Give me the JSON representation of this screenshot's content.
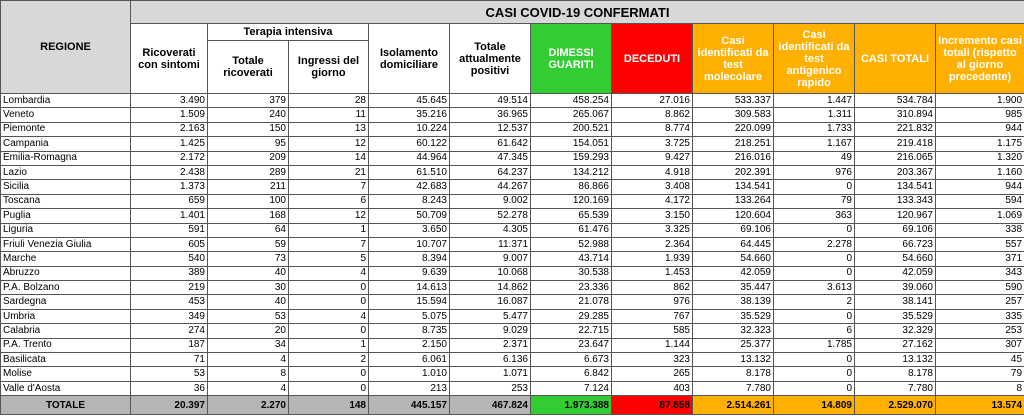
{
  "title": "CASI COVID-19 CONFERMATI",
  "headers": {
    "regione": "REGIONE",
    "ricoverati": "Ricoverati con sintomi",
    "terapia_intensiva": "Terapia intensiva",
    "ti_totale": "Totale ricoverati",
    "ti_ingressi": "Ingressi del giorno",
    "isolamento": "Isolamento domiciliare",
    "positivi": "Totale attualmente positivi",
    "dimessi": "DIMESSI GUARITI",
    "deceduti": "DECEDUTI",
    "test_molecolare": "Casi identificati da test molecolare",
    "test_antigenico": "Casi identificati da test antigenico rapido",
    "casi_totali": "CASI TOTALI",
    "incremento": "Incremento casi totali (rispetto al giorno precedente)"
  },
  "rows": [
    {
      "regione": "Lombardia",
      "ricoverati": "3.490",
      "ti_totale": "379",
      "ti_ingressi": "28",
      "isolamento": "45.645",
      "positivi": "49.514",
      "dimessi": "458.254",
      "deceduti": "27.016",
      "molecolare": "533.337",
      "antigenico": "1.447",
      "totali": "534.784",
      "incremento": "1.900"
    },
    {
      "regione": "Veneto",
      "ricoverati": "1.509",
      "ti_totale": "240",
      "ti_ingressi": "11",
      "isolamento": "35.216",
      "positivi": "36.965",
      "dimessi": "265.067",
      "deceduti": "8.862",
      "molecolare": "309.583",
      "antigenico": "1.311",
      "totali": "310.894",
      "incremento": "985"
    },
    {
      "regione": "Piemonte",
      "ricoverati": "2.163",
      "ti_totale": "150",
      "ti_ingressi": "13",
      "isolamento": "10.224",
      "positivi": "12.537",
      "dimessi": "200.521",
      "deceduti": "8.774",
      "molecolare": "220.099",
      "antigenico": "1.733",
      "totali": "221.832",
      "incremento": "944"
    },
    {
      "regione": "Campania",
      "ricoverati": "1.425",
      "ti_totale": "95",
      "ti_ingressi": "12",
      "isolamento": "60.122",
      "positivi": "61.642",
      "dimessi": "154.051",
      "deceduti": "3.725",
      "molecolare": "218.251",
      "antigenico": "1.167",
      "totali": "219.418",
      "incremento": "1.175"
    },
    {
      "regione": "Emilia-Romagna",
      "ricoverati": "2.172",
      "ti_totale": "209",
      "ti_ingressi": "14",
      "isolamento": "44.964",
      "positivi": "47.345",
      "dimessi": "159.293",
      "deceduti": "9.427",
      "molecolare": "216.016",
      "antigenico": "49",
      "totali": "216.065",
      "incremento": "1.320"
    },
    {
      "regione": "Lazio",
      "ricoverati": "2.438",
      "ti_totale": "289",
      "ti_ingressi": "21",
      "isolamento": "61.510",
      "positivi": "64.237",
      "dimessi": "134.212",
      "deceduti": "4.918",
      "molecolare": "202.391",
      "antigenico": "976",
      "totali": "203.367",
      "incremento": "1.160"
    },
    {
      "regione": "Sicilia",
      "ricoverati": "1.373",
      "ti_totale": "211",
      "ti_ingressi": "7",
      "isolamento": "42.683",
      "positivi": "44.267",
      "dimessi": "86.866",
      "deceduti": "3.408",
      "molecolare": "134.541",
      "antigenico": "0",
      "totali": "134.541",
      "incremento": "944"
    },
    {
      "regione": "Toscana",
      "ricoverati": "659",
      "ti_totale": "100",
      "ti_ingressi": "6",
      "isolamento": "8.243",
      "positivi": "9.002",
      "dimessi": "120.169",
      "deceduti": "4.172",
      "molecolare": "133.264",
      "antigenico": "79",
      "totali": "133.343",
      "incremento": "594"
    },
    {
      "regione": "Puglia",
      "ricoverati": "1.401",
      "ti_totale": "168",
      "ti_ingressi": "12",
      "isolamento": "50.709",
      "positivi": "52.278",
      "dimessi": "65.539",
      "deceduti": "3.150",
      "molecolare": "120.604",
      "antigenico": "363",
      "totali": "120.967",
      "incremento": "1.069"
    },
    {
      "regione": "Liguria",
      "ricoverati": "591",
      "ti_totale": "64",
      "ti_ingressi": "1",
      "isolamento": "3.650",
      "positivi": "4.305",
      "dimessi": "61.476",
      "deceduti": "3.325",
      "molecolare": "69.106",
      "antigenico": "0",
      "totali": "69.106",
      "incremento": "338"
    },
    {
      "regione": "Friuli Venezia Giulia",
      "ricoverati": "605",
      "ti_totale": "59",
      "ti_ingressi": "7",
      "isolamento": "10.707",
      "positivi": "11.371",
      "dimessi": "52.988",
      "deceduti": "2.364",
      "molecolare": "64.445",
      "antigenico": "2.278",
      "totali": "66.723",
      "incremento": "557"
    },
    {
      "regione": "Marche",
      "ricoverati": "540",
      "ti_totale": "73",
      "ti_ingressi": "5",
      "isolamento": "8.394",
      "positivi": "9.007",
      "dimessi": "43.714",
      "deceduti": "1.939",
      "molecolare": "54.660",
      "antigenico": "0",
      "totali": "54.660",
      "incremento": "371"
    },
    {
      "regione": "Abruzzo",
      "ricoverati": "389",
      "ti_totale": "40",
      "ti_ingressi": "4",
      "isolamento": "9.639",
      "positivi": "10.068",
      "dimessi": "30.538",
      "deceduti": "1.453",
      "molecolare": "42.059",
      "antigenico": "0",
      "totali": "42.059",
      "incremento": "343"
    },
    {
      "regione": "P.A. Bolzano",
      "ricoverati": "219",
      "ti_totale": "30",
      "ti_ingressi": "0",
      "isolamento": "14.613",
      "positivi": "14.862",
      "dimessi": "23.336",
      "deceduti": "862",
      "molecolare": "35.447",
      "antigenico": "3.613",
      "totali": "39.060",
      "incremento": "590"
    },
    {
      "regione": "Sardegna",
      "ricoverati": "453",
      "ti_totale": "40",
      "ti_ingressi": "0",
      "isolamento": "15.594",
      "positivi": "16.087",
      "dimessi": "21.078",
      "deceduti": "976",
      "molecolare": "38.139",
      "antigenico": "2",
      "totali": "38.141",
      "incremento": "257"
    },
    {
      "regione": "Umbria",
      "ricoverati": "349",
      "ti_totale": "53",
      "ti_ingressi": "4",
      "isolamento": "5.075",
      "positivi": "5.477",
      "dimessi": "29.285",
      "deceduti": "767",
      "molecolare": "35.529",
      "antigenico": "0",
      "totali": "35.529",
      "incremento": "335"
    },
    {
      "regione": "Calabria",
      "ricoverati": "274",
      "ti_totale": "20",
      "ti_ingressi": "0",
      "isolamento": "8.735",
      "positivi": "9.029",
      "dimessi": "22.715",
      "deceduti": "585",
      "molecolare": "32.323",
      "antigenico": "6",
      "totali": "32.329",
      "incremento": "253"
    },
    {
      "regione": "P.A. Trento",
      "ricoverati": "187",
      "ti_totale": "34",
      "ti_ingressi": "1",
      "isolamento": "2.150",
      "positivi": "2.371",
      "dimessi": "23.647",
      "deceduti": "1.144",
      "molecolare": "25.377",
      "antigenico": "1.785",
      "totali": "27.162",
      "incremento": "307"
    },
    {
      "regione": "Basilicata",
      "ricoverati": "71",
      "ti_totale": "4",
      "ti_ingressi": "2",
      "isolamento": "6.061",
      "positivi": "6.136",
      "dimessi": "6.673",
      "deceduti": "323",
      "molecolare": "13.132",
      "antigenico": "0",
      "totali": "13.132",
      "incremento": "45"
    },
    {
      "regione": "Molise",
      "ricoverati": "53",
      "ti_totale": "8",
      "ti_ingressi": "0",
      "isolamento": "1.010",
      "positivi": "1.071",
      "dimessi": "6.842",
      "deceduti": "265",
      "molecolare": "8.178",
      "antigenico": "0",
      "totali": "8.178",
      "incremento": "79"
    },
    {
      "regione": "Valle d'Aosta",
      "ricoverati": "36",
      "ti_totale": "4",
      "ti_ingressi": "0",
      "isolamento": "213",
      "positivi": "253",
      "dimessi": "7.124",
      "deceduti": "403",
      "molecolare": "7.780",
      "antigenico": "0",
      "totali": "7.780",
      "incremento": "8"
    }
  ],
  "totals": {
    "label": "TOTALE",
    "ricoverati": "20.397",
    "ti_totale": "2.270",
    "ti_ingressi": "148",
    "isolamento": "445.157",
    "positivi": "467.824",
    "dimessi": "1.973.388",
    "deceduti": "87.858",
    "molecolare": "2.514.261",
    "antigenico": "14.809",
    "totali": "2.529.070",
    "incremento": "13.574"
  }
}
